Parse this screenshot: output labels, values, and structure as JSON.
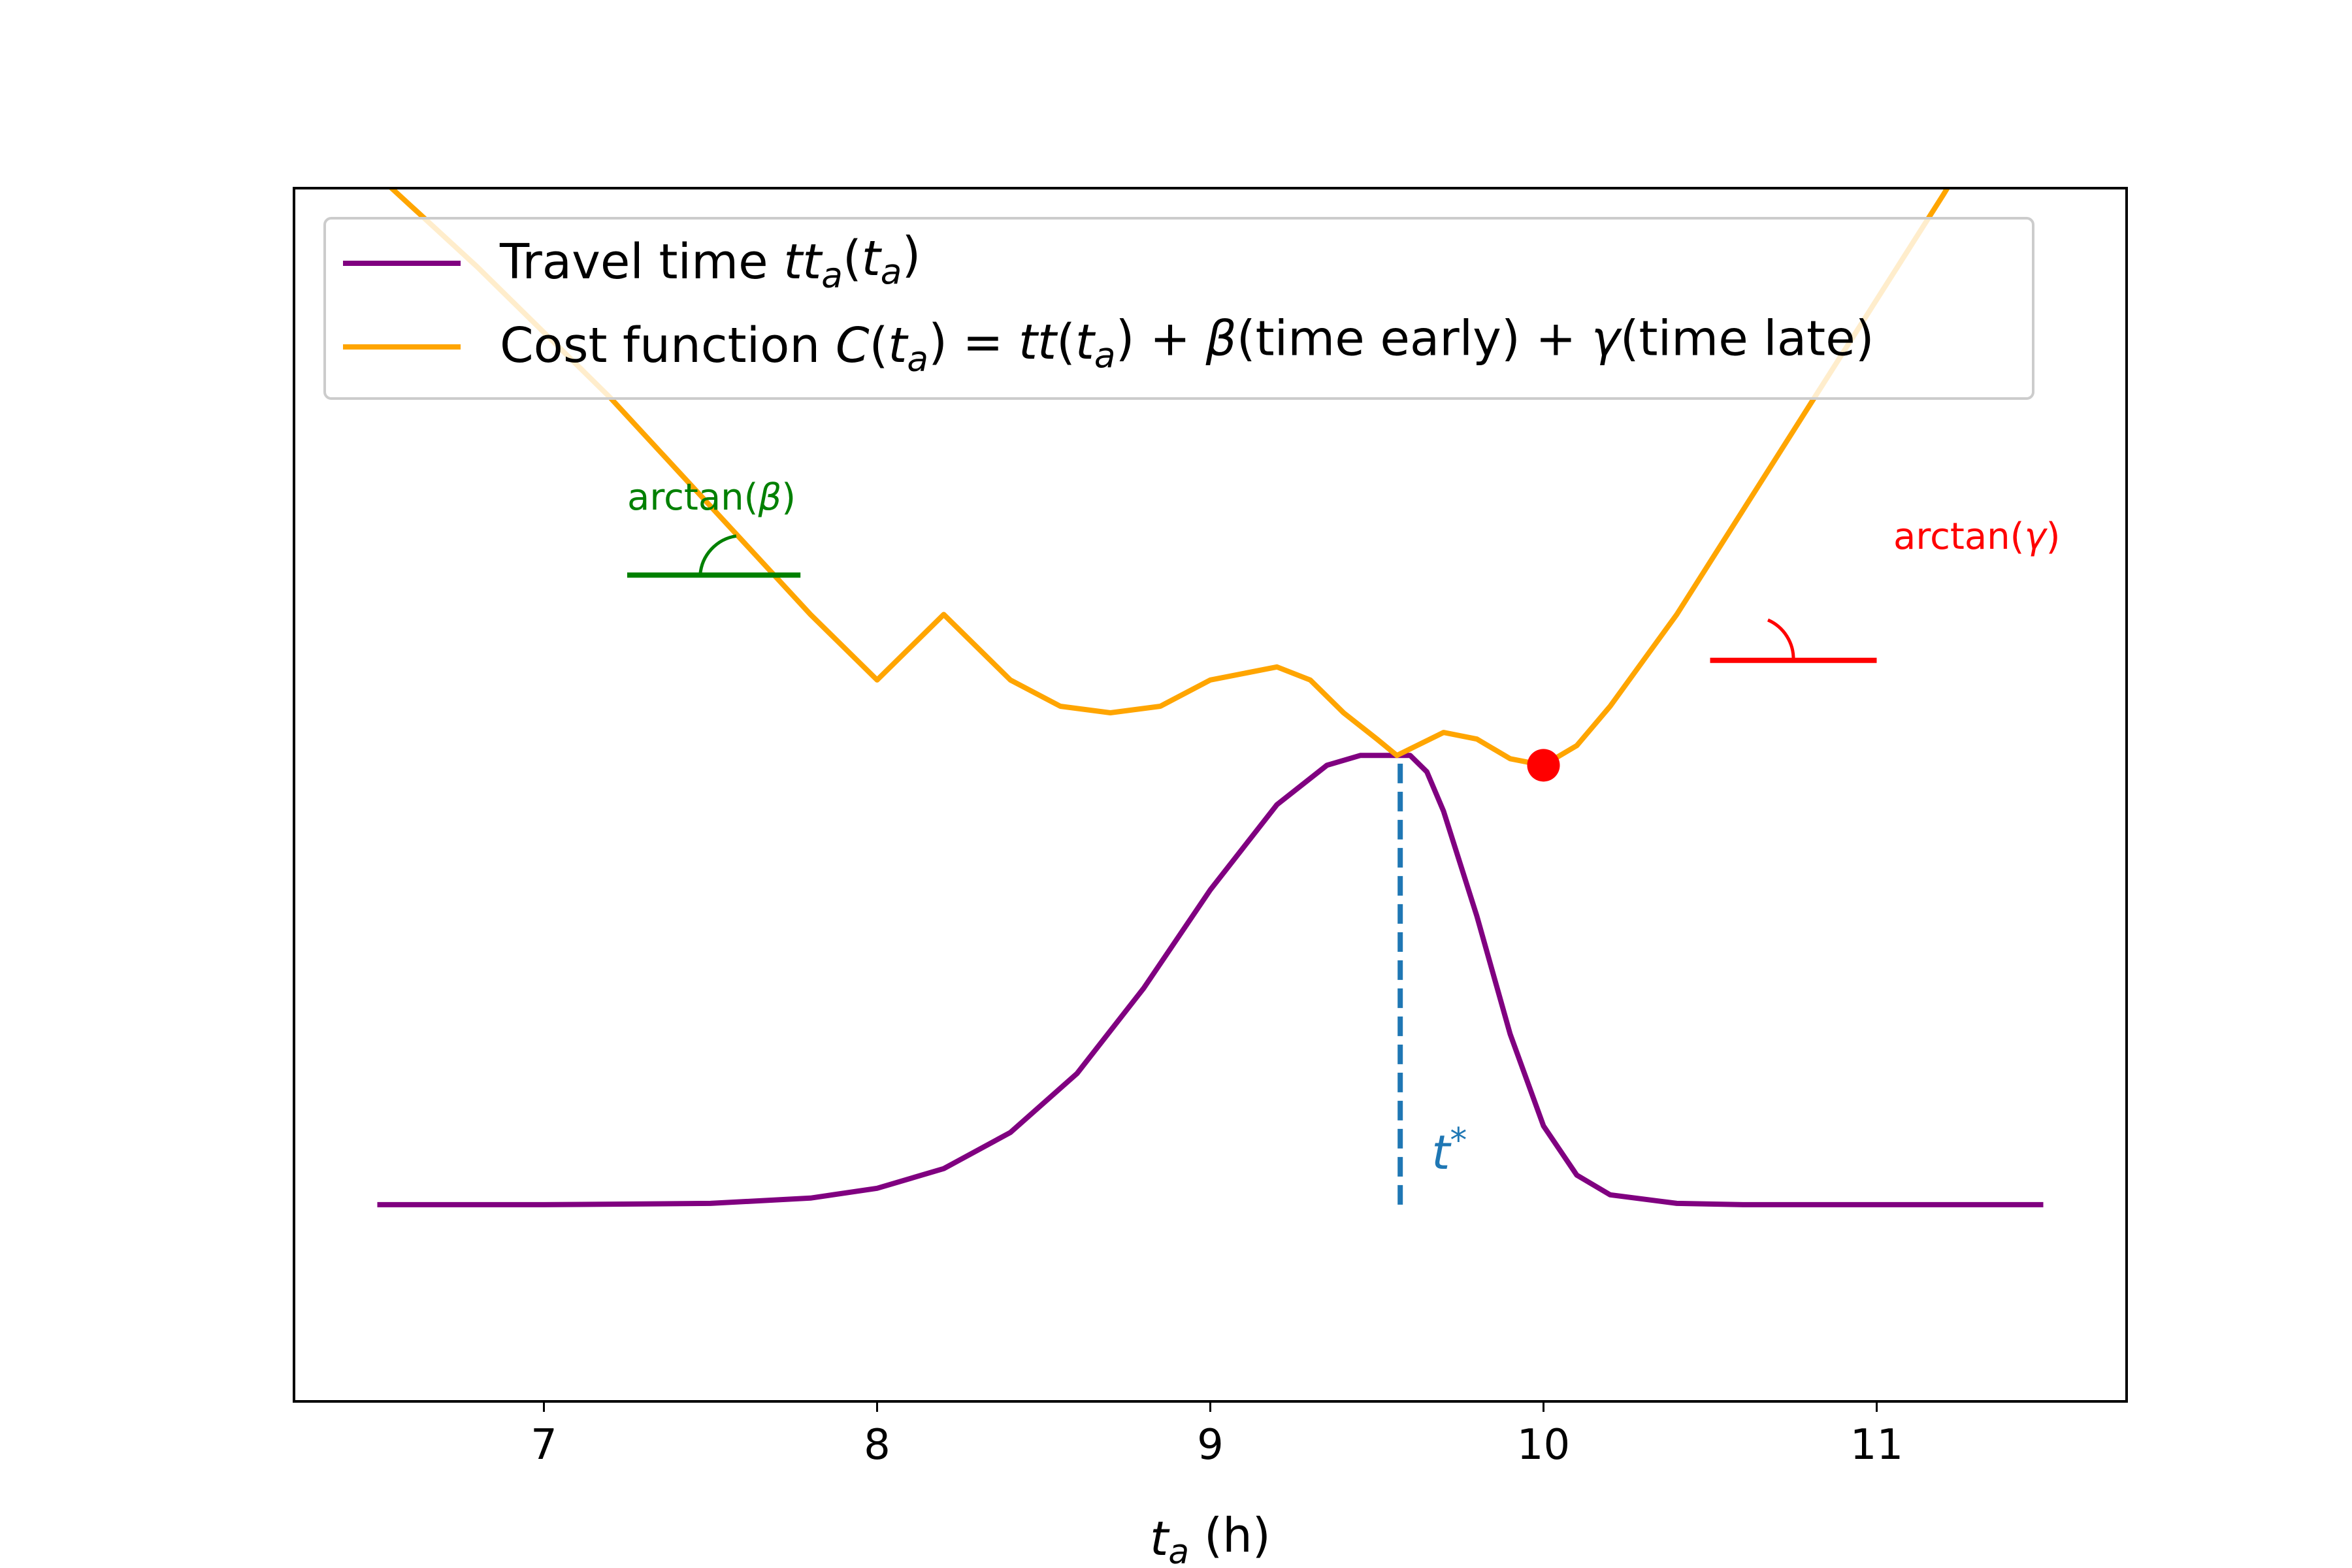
{
  "chart_data": {
    "type": "line",
    "title": "",
    "xlabel": {
      "var": "t",
      "sub": "a",
      "unit": " (h)"
    },
    "ylabel": "",
    "xlim": [
      6.25,
      11.75
    ],
    "ylim": [
      -0.3,
      1.55
    ],
    "xticks": [
      7,
      8,
      9,
      10,
      11
    ],
    "yticks": [],
    "grid": false,
    "legend_position": "top-left",
    "legend": [
      {
        "color": "#800080",
        "parts": [
          [
            "Travel time ",
            "n"
          ],
          [
            "tt",
            "i"
          ],
          [
            "a",
            "si"
          ],
          [
            "(",
            "n"
          ],
          [
            "t",
            "i"
          ],
          [
            "a",
            "si"
          ],
          [
            ")",
            "n"
          ]
        ]
      },
      {
        "color": "#FFA500",
        "parts": [
          [
            "Cost function ",
            "n"
          ],
          [
            "C",
            "i"
          ],
          [
            "(",
            "n"
          ],
          [
            "t",
            "i"
          ],
          [
            "a",
            "si"
          ],
          [
            ") = ",
            "n"
          ],
          [
            "tt",
            "i"
          ],
          [
            "(",
            "n"
          ],
          [
            "t",
            "i"
          ],
          [
            "a",
            "si"
          ],
          [
            ") + ",
            "n"
          ],
          [
            "β",
            "i"
          ],
          [
            "(time early) + ",
            "n"
          ],
          [
            "γ",
            "i"
          ],
          [
            "(time late)",
            "n"
          ]
        ]
      }
    ],
    "series": [
      {
        "color": "#800080",
        "x": [
          6.5,
          7.0,
          7.5,
          7.8,
          8.0,
          8.2,
          8.4,
          8.6,
          8.8,
          9.0,
          9.2,
          9.35,
          9.45,
          9.55,
          9.6,
          9.65,
          9.7,
          9.8,
          9.9,
          10.0,
          10.1,
          10.2,
          10.4,
          10.6,
          11.0,
          11.5
        ],
        "y": [
          0.0,
          0.0,
          0.002,
          0.01,
          0.025,
          0.055,
          0.11,
          0.2,
          0.33,
          0.48,
          0.61,
          0.67,
          0.685,
          0.685,
          0.685,
          0.66,
          0.6,
          0.44,
          0.26,
          0.12,
          0.045,
          0.015,
          0.002,
          0.0,
          0.0,
          0.0
        ]
      },
      {
        "color": "#FFA500",
        "x": [
          6.5,
          6.8,
          7.0,
          7.2,
          7.4,
          7.6,
          7.8,
          8.0,
          8.2,
          8.4,
          8.55,
          8.7,
          8.85,
          9.0,
          9.1,
          9.2,
          9.3,
          9.4,
          9.5,
          9.56,
          9.62,
          9.7,
          9.8,
          9.9,
          10.0,
          10.1,
          10.2,
          10.3,
          10.4,
          10.5,
          10.6,
          10.8,
          11.0,
          11.2,
          11.45
        ],
        "y": [
          1.57,
          1.43,
          1.33,
          1.23,
          1.12,
          1.01,
          0.9,
          0.8,
          0.9,
          0.8,
          0.76,
          0.75,
          0.76,
          0.8,
          0.81,
          0.82,
          0.8,
          0.75,
          0.71,
          0.685,
          0.7,
          0.72,
          0.71,
          0.68,
          0.67,
          0.7,
          0.76,
          0.83,
          0.9,
          0.98,
          1.06,
          1.22,
          1.38,
          1.54,
          1.75
        ]
      }
    ],
    "marker": {
      "x": 10.0,
      "y": 0.67,
      "color": "#FF0000"
    },
    "vline": {
      "x": 9.57,
      "y0": 0.0,
      "y1": 0.685,
      "color": "#1F77B4",
      "label_var": "t",
      "label_sup": "*"
    },
    "annotations": [
      {
        "text_pre": "arctan(",
        "symbol": "β",
        "text_post": ")",
        "color": "#008000",
        "x": 7.25,
        "y": 1.06,
        "line_x": [
          7.25,
          7.77
        ],
        "line_y": 0.96,
        "arc_center_x": 7.52,
        "arc_side": "left"
      },
      {
        "text_pre": "arctan(",
        "symbol": "γ",
        "text_post": ")",
        "color": "#FF0000",
        "x": 11.05,
        "y": 1.0,
        "line_x": [
          10.5,
          11.0
        ],
        "line_y": 0.83,
        "arc_center_x": 10.75,
        "arc_side": "right"
      }
    ]
  }
}
